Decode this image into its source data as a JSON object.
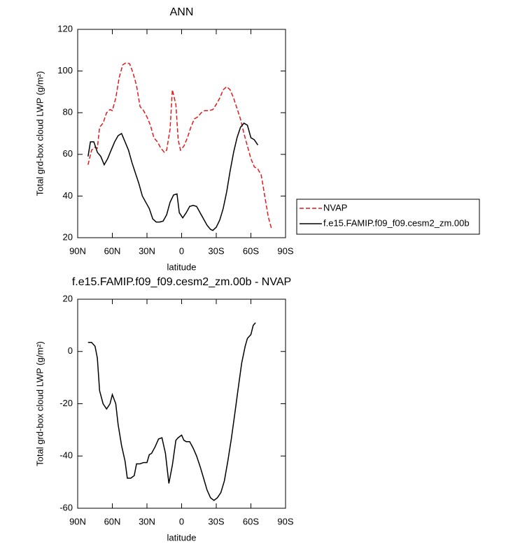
{
  "chart_data": [
    {
      "type": "line",
      "title": "ANN",
      "x_label": "latitude",
      "y_label": "Total grd-box cloud LWP (g/m²)",
      "xlim": [
        90,
        -90
      ],
      "xticks": [
        {
          "value": 90,
          "label": "90N"
        },
        {
          "value": 60,
          "label": "60N"
        },
        {
          "value": 30,
          "label": "30N"
        },
        0,
        {
          "value": -30,
          "label": "30S"
        },
        {
          "value": -60,
          "label": "60S"
        },
        {
          "value": -90,
          "label": "90S"
        }
      ],
      "ylim": [
        20,
        120
      ],
      "yticks": [
        20,
        40,
        60,
        80,
        100,
        120
      ],
      "legend": "outside-right",
      "series": [
        {
          "name": "NVAP",
          "color": "#e41a1c",
          "line_style": "dashed",
          "x": [
            81,
            78,
            75,
            73,
            71,
            68,
            65,
            62,
            60,
            57,
            54,
            51,
            48,
            45,
            42,
            39,
            36,
            33,
            30,
            27,
            24,
            21,
            18,
            15,
            13,
            10,
            8,
            5,
            3,
            1,
            -2,
            -5,
            -8,
            -11,
            -14,
            -17,
            -20,
            -24,
            -27,
            -30,
            -33,
            -36,
            -39,
            -42,
            -45,
            -48,
            -51,
            -54,
            -57,
            -60,
            -63,
            -66,
            -69,
            -72,
            -75,
            -78
          ],
          "values": [
            55,
            62,
            63.5,
            63,
            73,
            75,
            80,
            81.5,
            81,
            87,
            97,
            103,
            104,
            103.5,
            99,
            93,
            83,
            81,
            78,
            74,
            68,
            66,
            63,
            61,
            62,
            72,
            91,
            84,
            67,
            62,
            64,
            68,
            73,
            77,
            78,
            80,
            81,
            81,
            81.5,
            84,
            87,
            91,
            92.5,
            91,
            87,
            82,
            77,
            70,
            64,
            58,
            54,
            53,
            50,
            40,
            30,
            24
          ]
        },
        {
          "name": "f.e15.FAMIP.f09_f09.cesm2_zm.00b",
          "color": "#000000",
          "line_style": "solid",
          "x": [
            81,
            79,
            76,
            73,
            70,
            67,
            64,
            61,
            58,
            55,
            52,
            49,
            46,
            43,
            40,
            37,
            34,
            31,
            28,
            25,
            22,
            19,
            16,
            13,
            10,
            7,
            4,
            2,
            -1,
            -4,
            -7,
            -10,
            -13,
            -16,
            -19,
            -22,
            -25,
            -27,
            -30,
            -33,
            -36,
            -39,
            -42,
            -45,
            -48,
            -51,
            -54,
            -57,
            -60,
            -63,
            -66
          ],
          "values": [
            59,
            66,
            66,
            61,
            59,
            55,
            58,
            62,
            66,
            69,
            70,
            66,
            62,
            56,
            51,
            46,
            40,
            37,
            34,
            29,
            27.5,
            27.5,
            28,
            31,
            37,
            40.5,
            41,
            32,
            29.5,
            32,
            35,
            35.5,
            35,
            32,
            29,
            26,
            24,
            23.5,
            25,
            28.5,
            34,
            42,
            52,
            61,
            68,
            73,
            75,
            74,
            68,
            67,
            64.5
          ]
        }
      ]
    },
    {
      "type": "line",
      "title": "f.e15.FAMIP.f09_f09.cesm2_zm.00b - NVAP",
      "x_label": "latitude",
      "y_label": "Total grd-box cloud LWP (g/m²)",
      "xlim": [
        90,
        -90
      ],
      "xticks": [
        {
          "value": 90,
          "label": "90N"
        },
        {
          "value": 60,
          "label": "60N"
        },
        {
          "value": 30,
          "label": "30N"
        },
        0,
        {
          "value": -30,
          "label": "30S"
        },
        {
          "value": -60,
          "label": "60S"
        },
        {
          "value": -90,
          "label": "90S"
        }
      ],
      "ylim": [
        -60,
        20
      ],
      "yticks": [
        -60,
        -40,
        -20,
        0,
        20
      ],
      "series": [
        {
          "color": "#000000",
          "line_style": "solid",
          "x": [
            81,
            78,
            75,
            73,
            71,
            68,
            65,
            62,
            60,
            57,
            55,
            52,
            49,
            47,
            44,
            41,
            39,
            36,
            33,
            30,
            28,
            26,
            23,
            20,
            17,
            14,
            11,
            8,
            5,
            3,
            0,
            -2,
            -4,
            -7,
            -10,
            -13,
            -16,
            -19,
            -22,
            -25,
            -28,
            -31,
            -34,
            -37,
            -40,
            -43,
            -46,
            -49,
            -52,
            -55,
            -57,
            -60,
            -62,
            -64
          ],
          "values": [
            3.5,
            3.5,
            2,
            -2.5,
            -15,
            -20,
            -22,
            -20,
            -16.5,
            -20,
            -28,
            -36,
            -42,
            -48.5,
            -48.5,
            -47.5,
            -43,
            -43,
            -42.5,
            -42.5,
            -39.5,
            -39,
            -36.5,
            -33.5,
            -33,
            -39,
            -50.5,
            -43.5,
            -34,
            -33,
            -32,
            -34,
            -34.5,
            -34.5,
            -37,
            -40,
            -44,
            -48.5,
            -53,
            -56,
            -57,
            -56,
            -54,
            -49.5,
            -42,
            -33.5,
            -24,
            -14,
            -4.5,
            2,
            5,
            6.5,
            10,
            11
          ]
        }
      ]
    }
  ]
}
